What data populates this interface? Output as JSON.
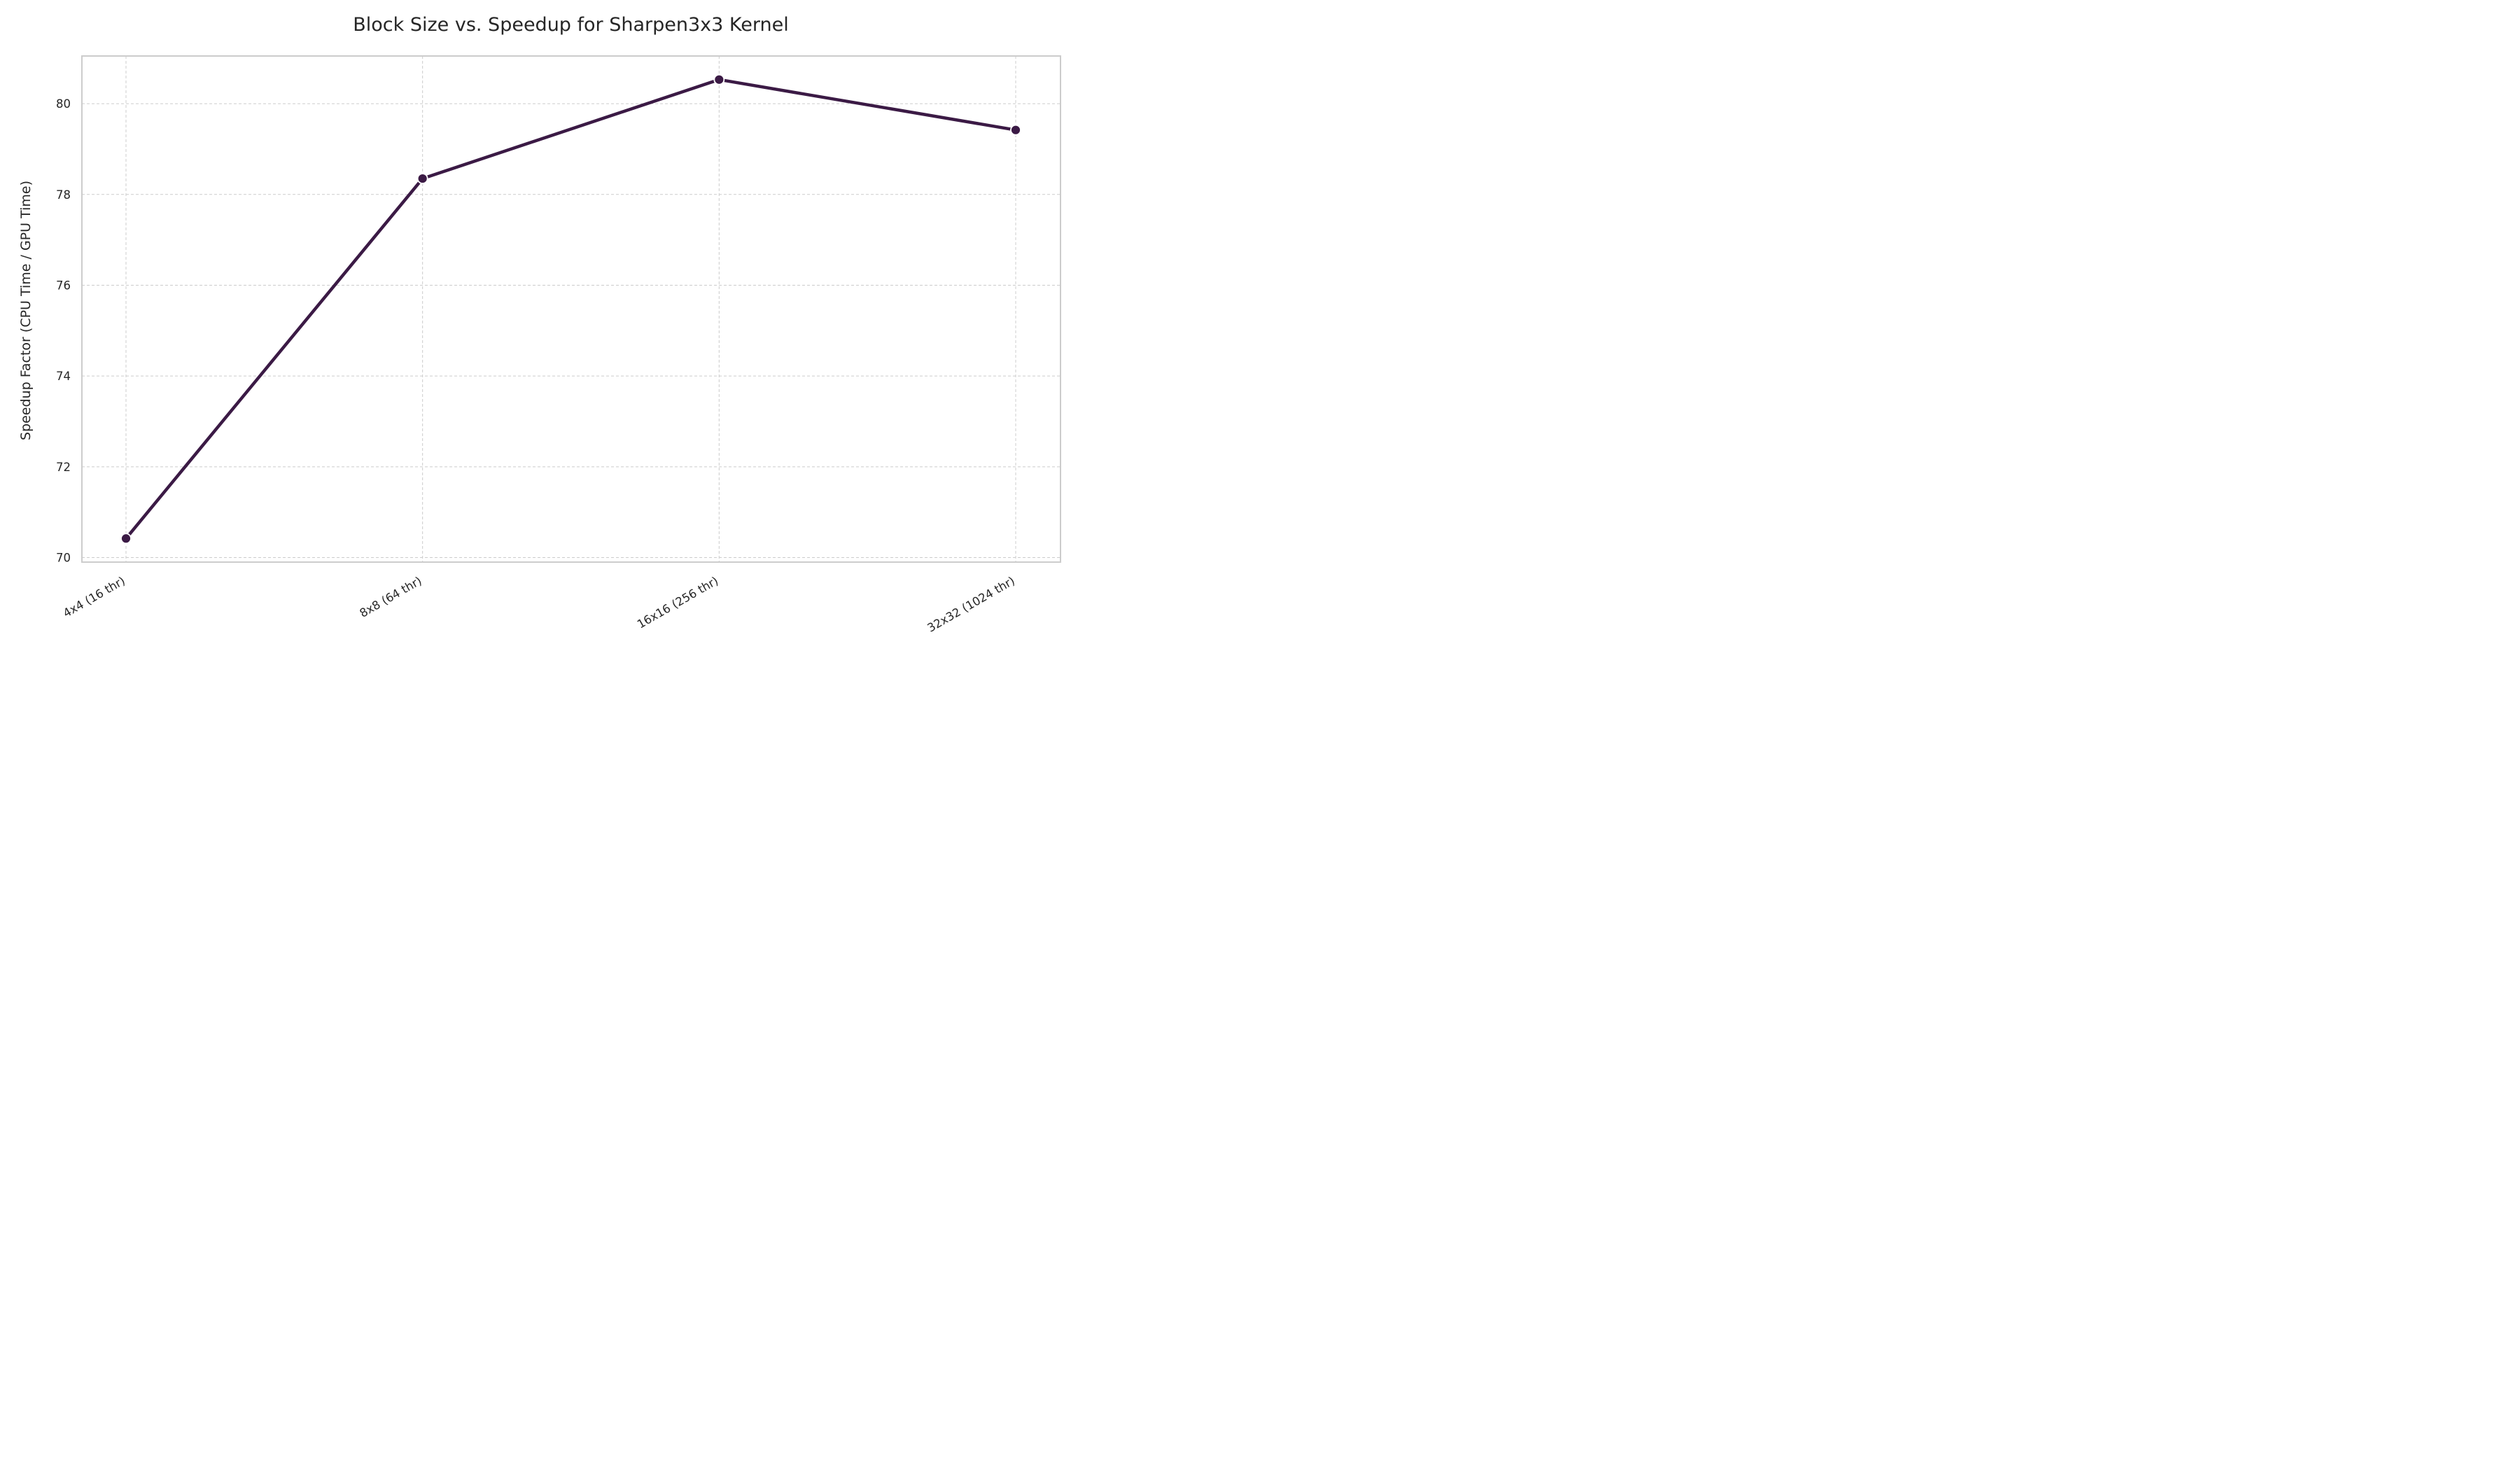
{
  "chart_data": {
    "type": "line",
    "title": "Block Size vs. Speedup for Sharpen3x3 Kernel",
    "xlabel": "",
    "ylabel": "Speedup Factor (CPU Time / GPU Time)",
    "categories": [
      "4x4 (16 thr)",
      "8x8 (64 thr)",
      "16x16 (256 thr)",
      "32x32 (1024 thr)"
    ],
    "series": [
      {
        "values": [
          70.42,
          78.35,
          80.53,
          79.42
        ],
        "color": "#3b1a45"
      }
    ],
    "ylim": [
      69.9,
      81.05
    ],
    "yticks": [
      70,
      72,
      74,
      76,
      78,
      80
    ],
    "grid": true,
    "legend": "none"
  }
}
